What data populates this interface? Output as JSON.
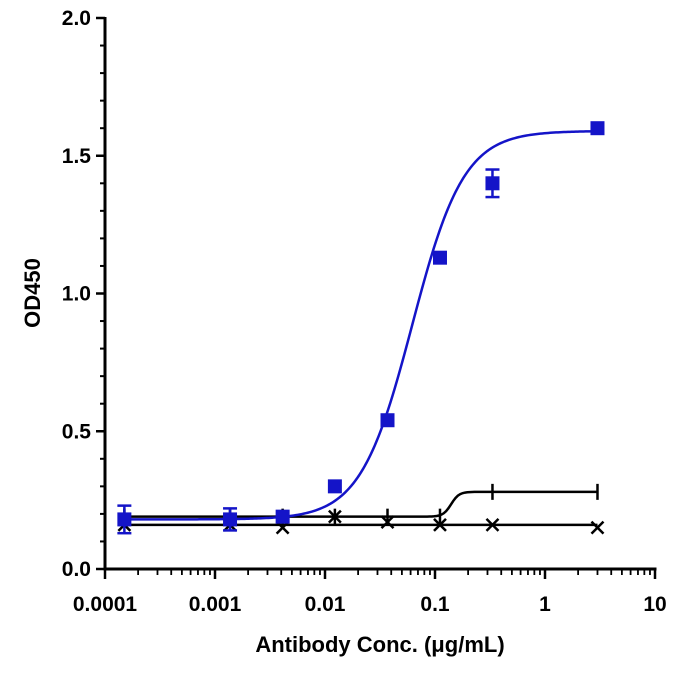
{
  "chart_data": {
    "type": "scatter",
    "title": "",
    "xlabel": "Antibody Conc. (μg/mL)",
    "ylabel": "OD450",
    "x_scale": "log",
    "xlim": [
      0.0001,
      10
    ],
    "ylim": [
      0.0,
      2.0
    ],
    "x_ticks": [
      "0.0001",
      "0.001",
      "0.01",
      "0.1",
      "1",
      "10"
    ],
    "y_ticks": [
      "0.0",
      "0.5",
      "1.0",
      "1.5",
      "2.0"
    ],
    "grid": false,
    "legend": "none",
    "series": [
      {
        "marker": "square",
        "color": "#1414c8",
        "line": "sigmoid-fit",
        "x": [
          0.00015,
          0.00137,
          0.00412,
          0.0123,
          0.037,
          0.111,
          0.333,
          3.0
        ],
        "y": [
          0.18,
          0.18,
          0.19,
          0.3,
          0.54,
          1.13,
          1.4,
          1.6
        ],
        "error": [
          0.05,
          0.04,
          0.01,
          0.01,
          0.01,
          0.01,
          0.05,
          0.01
        ]
      },
      {
        "marker": "x",
        "color": "#000000",
        "line": "flat",
        "x": [
          0.00015,
          0.00137,
          0.00412,
          0.0123,
          0.037,
          0.111,
          0.333,
          3.0
        ],
        "y": [
          0.16,
          0.16,
          0.15,
          0.19,
          0.17,
          0.16,
          0.16,
          0.15
        ],
        "fit": [
          0.16,
          0.16,
          0.16,
          0.16,
          0.16,
          0.16,
          0.16,
          0.16
        ]
      },
      {
        "marker": "bar",
        "color": "#000000",
        "line": "step-fit",
        "x": [
          0.00015,
          0.00137,
          0.00412,
          0.0123,
          0.037,
          0.111,
          0.333,
          3.0
        ],
        "y": [
          0.19,
          0.19,
          0.19,
          0.19,
          0.19,
          0.19,
          0.28,
          0.28
        ]
      }
    ]
  }
}
